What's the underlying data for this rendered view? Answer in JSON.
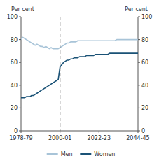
{
  "chart_data": {
    "type": "line",
    "ylabel": "Per cent",
    "y2label": "Per cent",
    "x": [
      0,
      1,
      2,
      3,
      4,
      5,
      6,
      7,
      8,
      9,
      10,
      11,
      12,
      13,
      14,
      15,
      16,
      17,
      18,
      19,
      20,
      21,
      22,
      23,
      24,
      25,
      26,
      27,
      28,
      29,
      30,
      31,
      32,
      33,
      34,
      35,
      36,
      37,
      38,
      39,
      40,
      41,
      42,
      43,
      44,
      45,
      46,
      47,
      48,
      49,
      50,
      51,
      52,
      53,
      54,
      55,
      56,
      57,
      58,
      59,
      60,
      61,
      62,
      63,
      64,
      65,
      66
    ],
    "xlim": [
      0,
      66
    ],
    "xticks": [
      {
        "value": 0,
        "label": "1978-79"
      },
      {
        "value": 22,
        "label": "2000-01"
      },
      {
        "value": 44,
        "label": "2022-23"
      },
      {
        "value": 66,
        "label": "2044-45"
      }
    ],
    "ylim": [
      0,
      100
    ],
    "yticks": [
      0,
      20,
      40,
      60,
      80,
      100
    ],
    "y2lim": [
      0,
      100
    ],
    "y2ticks": [
      0,
      20,
      40,
      60,
      80,
      100
    ],
    "reference_line_x": 22,
    "reference_line_style": "dashed",
    "grid": false,
    "legend": "bottom",
    "series": [
      {
        "name": "Men",
        "color": "#a8c4d8",
        "values": [
          80,
          82,
          81,
          80,
          79,
          78,
          77,
          76,
          75,
          76,
          75,
          74,
          74,
          73,
          74,
          73,
          72,
          73,
          72,
          72,
          72,
          72,
          73,
          74,
          75,
          76,
          77,
          77,
          78,
          78,
          78,
          78,
          79,
          79,
          79,
          79,
          79,
          79,
          79,
          79,
          79,
          79,
          79,
          79,
          79,
          79,
          79,
          79,
          79,
          79,
          79,
          79,
          79,
          79,
          80,
          80,
          80,
          80,
          80,
          80,
          80,
          80,
          80,
          80,
          80,
          80,
          80
        ]
      },
      {
        "name": "Women",
        "color": "#1a5276",
        "values": [
          29,
          29,
          29,
          30,
          30,
          30,
          31,
          31,
          32,
          33,
          34,
          35,
          36,
          37,
          38,
          39,
          40,
          41,
          42,
          43,
          44,
          45,
          56,
          58,
          60,
          61,
          62,
          62,
          63,
          63,
          64,
          64,
          64,
          65,
          65,
          65,
          65,
          66,
          66,
          66,
          66,
          66,
          67,
          67,
          67,
          67,
          67,
          67,
          67,
          67,
          68,
          68,
          68,
          68,
          68,
          68,
          68,
          68,
          68,
          68,
          68,
          68,
          68,
          68,
          68,
          68,
          68
        ]
      }
    ]
  }
}
